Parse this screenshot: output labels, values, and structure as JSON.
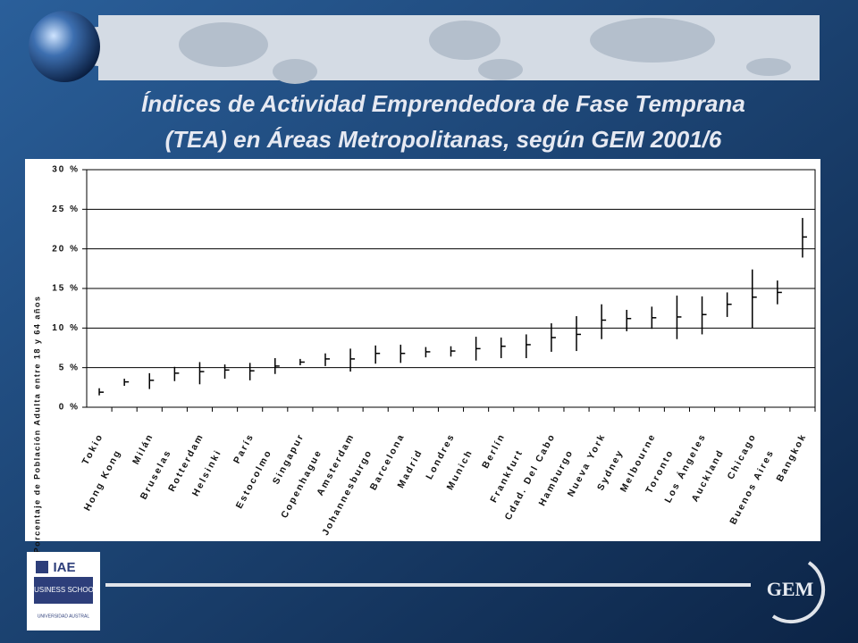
{
  "chart_data": {
    "type": "errorbar",
    "title": [
      "Índices de Actividad Emprendedora de Fase Temprana",
      "(TEA) en Áreas Metropolitanas, según GEM 2001/6"
    ],
    "y_label": "Porcentaje de Población Adulta entre 18 y 64 años",
    "categories": [
      "Tokio",
      "Hong Kong",
      "Milán",
      "Bruselas",
      "Rotterdam",
      "Helsinki",
      "París",
      "Estocolmo",
      "Singapur",
      "Copenhague",
      "Amsterdam",
      "Johannesburgo",
      "Barcelona",
      "Madrid",
      "Londres",
      "Munich",
      "Berlín",
      "Frankfurt",
      "Cdad. Del Cabo",
      "Hamburgo",
      "Nueva York",
      "Sydney",
      "Melbourne",
      "Toronto",
      "Los Ángeles",
      "Auckland",
      "Chicago",
      "Buenos Aires",
      "Bangkok"
    ],
    "values": [
      1.9,
      3.2,
      3.4,
      4.3,
      4.5,
      4.7,
      4.6,
      5.2,
      5.7,
      6.1,
      6.1,
      6.8,
      6.8,
      7.0,
      7.1,
      7.4,
      7.7,
      7.9,
      8.8,
      9.2,
      11.0,
      11.2,
      11.3,
      11.4,
      11.7,
      13.0,
      13.9,
      14.5,
      21.5
    ],
    "low": [
      1.5,
      2.7,
      2.3,
      3.3,
      2.9,
      3.6,
      3.4,
      4.2,
      5.3,
      5.2,
      4.5,
      5.5,
      5.6,
      6.3,
      6.4,
      5.9,
      6.2,
      6.2,
      7.0,
      7.1,
      8.6,
      9.6,
      9.9,
      8.6,
      9.2,
      11.4,
      10.0,
      13.0,
      18.9
    ],
    "high": [
      2.4,
      3.6,
      4.3,
      5.1,
      5.7,
      5.4,
      5.6,
      6.2,
      6.1,
      6.8,
      7.4,
      7.8,
      7.9,
      7.6,
      7.7,
      8.9,
      8.8,
      9.2,
      10.6,
      11.5,
      13.0,
      12.3,
      12.7,
      14.1,
      14.0,
      14.5,
      17.4,
      16.0,
      23.9
    ],
    "color": "#000000",
    "ylim": [
      0,
      30
    ],
    "yticks": [
      {
        "value": 0,
        "label": "0 %"
      },
      {
        "value": 5,
        "label": "5 %"
      },
      {
        "value": 10,
        "label": "10 %"
      },
      {
        "value": 15,
        "label": "15 %"
      },
      {
        "value": 20,
        "label": "20 %"
      },
      {
        "value": 25,
        "label": "25 %"
      },
      {
        "value": 30,
        "label": "30 %"
      }
    ],
    "grid": true
  },
  "logos": {
    "iae": "IAE",
    "school": "BUSINESS SCHOOL",
    "university": "UNIVERSIDAD AUSTRAL",
    "gem": "GEM"
  }
}
